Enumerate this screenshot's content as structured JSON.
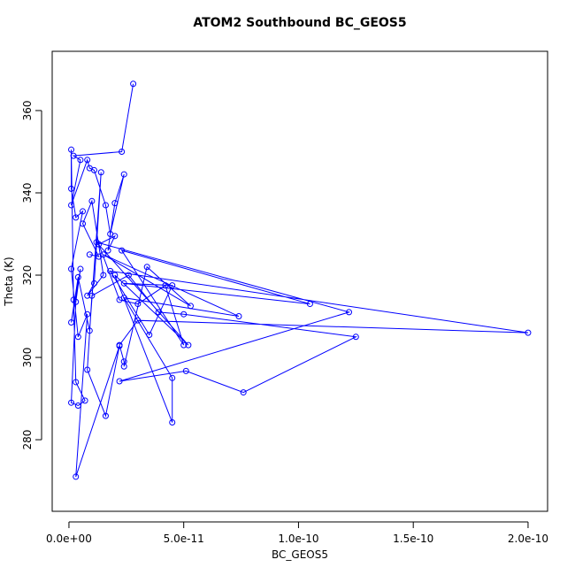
{
  "chart_data": {
    "type": "line",
    "title": "ATOM2 Southbound BC_GEOS5",
    "x_label": "BC_GEOS5",
    "y_label": "Theta (K)",
    "markers": true,
    "xlim": [
      -7.3e-12,
      2.085e-10
    ],
    "ylim": [
      262.6,
      374.4
    ],
    "xticks": [
      {
        "value": 0,
        "label": "0.0e+00"
      },
      {
        "value": 5e-11,
        "label": "5.0e-11"
      },
      {
        "value": 1e-10,
        "label": "1.0e-10"
      },
      {
        "value": 1.5e-10,
        "label": "1.5e-10"
      },
      {
        "value": 2e-10,
        "label": "2.0e-10"
      }
    ],
    "yticks": [
      280,
      300,
      320,
      340,
      360
    ],
    "series": [
      {
        "color": "#0000ff",
        "x": [
          2.8e-11,
          2.3e-11,
          2e-12,
          5e-12,
          1e-12,
          8e-12,
          9e-12,
          1.1e-11,
          1.6e-11,
          1.8e-11,
          2.4e-11,
          2e-11,
          1.7e-11,
          2e-11,
          1.3e-11,
          2.2e-11,
          3e-11,
          4.2e-11,
          5e-11,
          2.3e-11,
          1.05e-10,
          2.4e-11,
          4.5e-11,
          3.5e-11,
          1.8e-11,
          2e-10,
          3e-11,
          2.2e-11,
          2.4e-11,
          2.4e-11,
          3.4e-11,
          5.3e-11,
          1.5e-11,
          7.4e-11,
          2.4e-11,
          4.5e-11,
          4.5e-11,
          2e-11,
          5.2e-11,
          1.2e-11,
          1.22e-10,
          2.2e-11,
          5.1e-11,
          7.6e-11,
          1.25e-10,
          5e-11,
          3.9e-11,
          2.6e-11,
          1e-11,
          8e-12,
          1.6e-11,
          2.2e-11,
          3e-12,
          8e-12,
          4e-12,
          1e-12,
          6e-12,
          3e-12,
          1e-12,
          1e-12,
          2e-12,
          3e-12,
          7e-12,
          4e-12,
          1e-12,
          3e-12,
          5e-12,
          1e-12,
          4e-12,
          9e-12,
          1.4e-11,
          1.1e-11,
          8e-12,
          1.5e-11,
          1e-11,
          6e-12,
          1.3e-11,
          9e-12
        ],
        "values": [
          366.5,
          350,
          349,
          348,
          337,
          348,
          346,
          345.5,
          337,
          330,
          344.5,
          337.5,
          326,
          329.5,
          327.5,
          314,
          313,
          317.5,
          303,
          326,
          313,
          318,
          317.5,
          305.5,
          321,
          306,
          309,
          303,
          299,
          297.8,
          322,
          312.5,
          325,
          310,
          314.5,
          295,
          284.2,
          320,
          303,
          328,
          311,
          294.2,
          296.7,
          291.5,
          305,
          310.5,
          311,
          320,
          315,
          297,
          285.8,
          302.8,
          271,
          310.5,
          305,
          321.5,
          335.5,
          334,
          341,
          350.5,
          314,
          294,
          289.5,
          288.3,
          289,
          313.5,
          321.5,
          308.5,
          319.5,
          306.5,
          345,
          318,
          315,
          320,
          338,
          332.5,
          324.5,
          325
        ]
      }
    ]
  }
}
